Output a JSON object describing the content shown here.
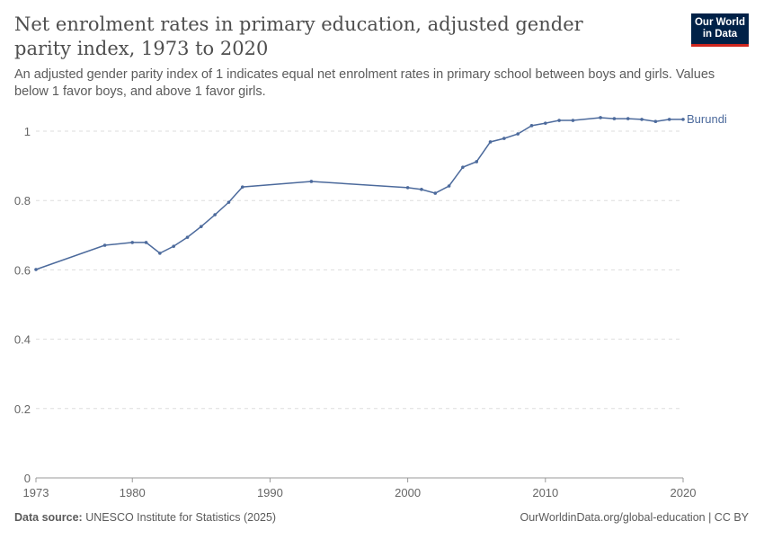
{
  "header": {
    "title": "Net enrolment rates in primary education, adjusted gender parity index, 1973 to 2020",
    "subtitle": "An adjusted gender parity index of 1 indicates equal net enrolment rates in primary school between boys and girls. Values below 1 favor boys, and above 1 favor girls.",
    "logo_line1": "Our World",
    "logo_line2": "in Data"
  },
  "footer": {
    "source_label": "Data source:",
    "source_text": "UNESCO Institute for Statistics (2025)",
    "right_text": "OurWorldinData.org/global-education | CC BY"
  },
  "chart_data": {
    "type": "line",
    "xlim": [
      1973,
      2020
    ],
    "ylim": [
      0,
      1.05
    ],
    "x_ticks": [
      1973,
      1980,
      1990,
      2000,
      2010,
      2020
    ],
    "y_ticks": [
      0,
      0.2,
      0.4,
      0.6,
      0.8,
      1
    ],
    "grid": "horizontal dashed",
    "colors": {
      "Burundi": "#4c6a9c"
    },
    "series": [
      {
        "name": "Burundi",
        "x": [
          1973,
          1978,
          1980,
          1981,
          1982,
          1983,
          1984,
          1985,
          1986,
          1987,
          1988,
          1993,
          2000,
          2001,
          2002,
          2003,
          2004,
          2005,
          2006,
          2007,
          2008,
          2009,
          2010,
          2011,
          2012,
          2014,
          2015,
          2016,
          2017,
          2018,
          2019,
          2020
        ],
        "y": [
          0.601,
          0.671,
          0.679,
          0.679,
          0.648,
          0.668,
          0.694,
          0.725,
          0.759,
          0.795,
          0.839,
          0.855,
          0.837,
          0.832,
          0.821,
          0.842,
          0.896,
          0.912,
          0.969,
          0.979,
          0.992,
          1.016,
          1.023,
          1.031,
          1.031,
          1.039,
          1.036,
          1.036,
          1.034,
          1.028,
          1.034,
          1.034
        ]
      }
    ]
  }
}
